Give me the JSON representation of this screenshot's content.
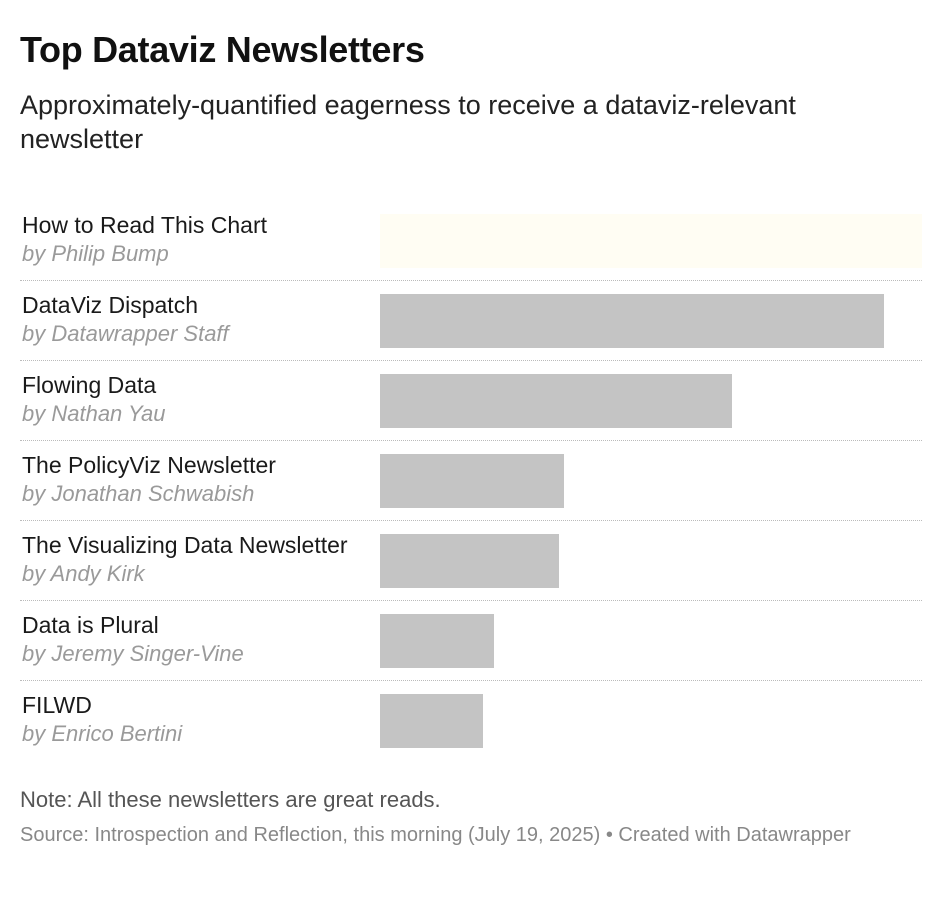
{
  "header": {
    "title": "Top Dataviz Newsletters",
    "subtitle": "Approximately-quantified eagerness to receive a dataviz-relevant newsletter"
  },
  "chart_data": {
    "type": "bar",
    "orientation": "horizontal",
    "categories": [
      "How to Read This Chart",
      "DataViz Dispatch",
      "Flowing Data",
      "The PolicyViz Newsletter",
      "The Visualizing Data Newsletter",
      "Data is Plural",
      "FILWD"
    ],
    "authors": [
      "by Philip Bump",
      "by Datawrapper Staff",
      "by Nathan Yau",
      "by Jonathan Schwabish",
      "by Andy Kirk",
      "by Jeremy Singer-Vine",
      "by Enrico Bertini"
    ],
    "values": [
      100,
      93,
      65,
      34,
      33,
      21,
      19
    ],
    "xlim": [
      0,
      100
    ],
    "grid": false,
    "legend": "none",
    "colors": {
      "bar": "#c4c4c4",
      "highlight": "#fffdf3"
    }
  },
  "footer": {
    "note": "Note: All these newsletters are great reads.",
    "source": "Source: Introspection and Reflection, this morning (July 19, 2025) • Created with Datawrapper"
  }
}
